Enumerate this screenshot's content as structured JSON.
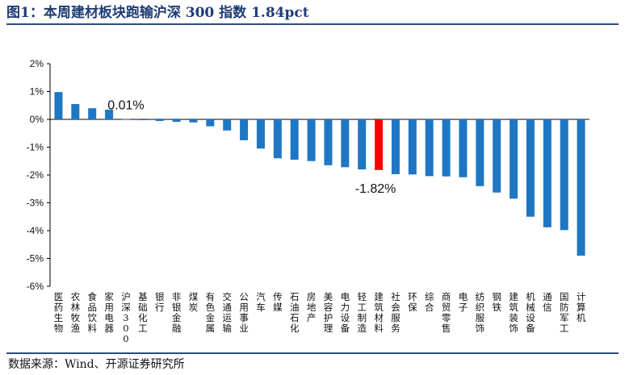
{
  "title": "图1：本周建材板块跑输沪深 300 指数 1.84pct",
  "source": "数据来源：Wind、开源证券研究所",
  "colors": {
    "bar": "#1f77c4",
    "highlight": "#ff0000",
    "axis": "#000000",
    "title": "#1f3c73"
  },
  "chart_data": {
    "type": "bar",
    "title": "本周建材板块跑输沪深 300 指数 1.84pct",
    "xlabel": "",
    "ylabel": "",
    "ylim": [
      -6,
      2
    ],
    "yticks": [
      "2%",
      "1%",
      "0%",
      "-1%",
      "-2%",
      "-3%",
      "-4%",
      "-5%",
      "-6%"
    ],
    "ytick_values": [
      2,
      1,
      0,
      -1,
      -2,
      -3,
      -4,
      -5,
      -6
    ],
    "categories": [
      "医药生物",
      "农林牧渔",
      "食品饮料",
      "家用电器",
      "沪深300",
      "基础化工",
      "银行",
      "非银金融",
      "煤炭",
      "有色金属",
      "交通运输",
      "公用事业",
      "汽车",
      "传媒",
      "石油石化",
      "房地产",
      "美容护理",
      "电力设备",
      "轻工制造",
      "建筑材料",
      "社会服务",
      "环保",
      "综合",
      "商贸零售",
      "电子",
      "纺织服饰",
      "钢铁",
      "建筑装饰",
      "机械设备",
      "通信",
      "国防军工",
      "计算机"
    ],
    "values": [
      0.98,
      0.55,
      0.4,
      0.35,
      0.01,
      -0.03,
      -0.06,
      -0.09,
      -0.11,
      -0.25,
      -0.4,
      -0.75,
      -1.05,
      -1.4,
      -1.45,
      -1.5,
      -1.65,
      -1.72,
      -1.8,
      -1.82,
      -1.97,
      -1.98,
      -2.04,
      -2.05,
      -2.08,
      -2.4,
      -2.63,
      -2.85,
      -3.5,
      -3.88,
      -3.98,
      -4.9
    ],
    "highlight_index": 19,
    "data_labels": [
      {
        "category": "沪深300",
        "text": "0.01%"
      },
      {
        "category": "建筑材料",
        "text": "-1.82%"
      }
    ]
  }
}
